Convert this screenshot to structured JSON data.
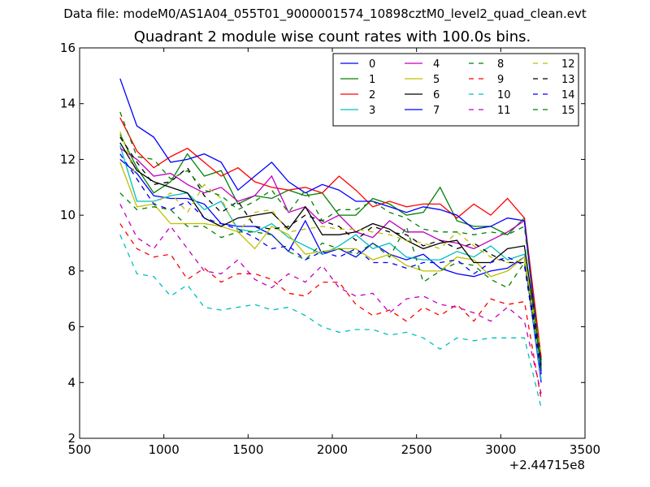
{
  "figure_suptitle": "Data file: modeM0/AS1A04_055T01_9000001574_10898cztM0_level2_quad_clean.evt",
  "chart_data": {
    "type": "line",
    "title": "Quadrant 2 module wise count rates with 100.0s bins.",
    "xlabel": "",
    "ylabel": "",
    "x_offset_label": "+2.44715e8",
    "xlim": [
      500,
      3500
    ],
    "ylim": [
      2,
      16
    ],
    "xticks": [
      500,
      1000,
      1500,
      2000,
      2500,
      3000,
      3500
    ],
    "yticks": [
      2,
      4,
      6,
      8,
      10,
      12,
      14,
      16
    ],
    "grid": false,
    "legend_position": "upper-right",
    "legend_columns": 4,
    "x": [
      740,
      840,
      940,
      1040,
      1140,
      1240,
      1340,
      1440,
      1540,
      1640,
      1740,
      1840,
      1940,
      2040,
      2140,
      2240,
      2340,
      2440,
      2540,
      2640,
      2740,
      2840,
      2940,
      3040,
      3140,
      3240
    ],
    "series": [
      {
        "name": "0",
        "color": "#0000ff",
        "dash": "solid",
        "values": [
          12.0,
          11.5,
          10.7,
          10.6,
          10.6,
          10.4,
          9.7,
          9.6,
          9.6,
          9.3,
          8.7,
          9.8,
          8.6,
          8.8,
          8.5,
          9.0,
          8.6,
          8.4,
          8.6,
          8.1,
          7.9,
          7.8,
          8.0,
          8.1,
          8.5,
          4.0
        ]
      },
      {
        "name": "1",
        "color": "#008000",
        "dash": "solid",
        "values": [
          12.9,
          11.7,
          10.8,
          11.2,
          12.2,
          11.4,
          11.6,
          10.4,
          10.7,
          10.6,
          10.9,
          10.7,
          10.8,
          10.0,
          10.0,
          10.6,
          10.4,
          10.0,
          10.1,
          11.0,
          9.8,
          9.6,
          9.6,
          9.3,
          9.9,
          4.8
        ]
      },
      {
        "name": "2",
        "color": "#ff0000",
        "dash": "solid",
        "values": [
          13.5,
          12.3,
          11.7,
          12.1,
          12.4,
          11.9,
          11.4,
          11.7,
          11.2,
          11.0,
          10.9,
          11.0,
          10.8,
          11.4,
          10.9,
          10.3,
          10.5,
          10.3,
          10.4,
          10.4,
          9.9,
          10.4,
          10.0,
          10.6,
          9.9,
          4.9
        ]
      },
      {
        "name": "3",
        "color": "#00bfbf",
        "dash": "solid",
        "values": [
          12.5,
          10.5,
          10.5,
          10.7,
          10.8,
          10.2,
          10.5,
          9.5,
          9.4,
          9.7,
          9.2,
          8.9,
          8.6,
          8.9,
          9.3,
          8.8,
          9.0,
          8.5,
          8.4,
          8.4,
          8.7,
          8.5,
          8.9,
          8.4,
          8.6,
          4.1
        ]
      },
      {
        "name": "4",
        "color": "#bf00bf",
        "dash": "solid",
        "values": [
          12.4,
          12.0,
          11.4,
          11.5,
          11.1,
          10.8,
          11.0,
          10.5,
          10.7,
          11.4,
          10.1,
          10.3,
          9.7,
          10.0,
          9.4,
          9.2,
          9.8,
          9.4,
          9.4,
          9.1,
          9.0,
          8.8,
          9.1,
          9.4,
          9.8,
          4.3
        ]
      },
      {
        "name": "5",
        "color": "#bfbf00",
        "dash": "solid",
        "values": [
          11.9,
          10.3,
          10.4,
          9.7,
          9.7,
          9.7,
          9.6,
          9.4,
          8.8,
          9.6,
          9.3,
          8.6,
          8.7,
          8.8,
          8.8,
          8.4,
          8.6,
          8.2,
          8.0,
          8.0,
          8.5,
          8.4,
          7.8,
          8.0,
          8.5,
          4.5
        ]
      },
      {
        "name": "6",
        "color": "#000000",
        "dash": "solid",
        "values": [
          12.6,
          11.6,
          11.2,
          11.0,
          10.8,
          9.9,
          9.6,
          9.9,
          10.0,
          10.1,
          9.5,
          10.3,
          9.3,
          9.3,
          9.4,
          9.7,
          9.5,
          9.1,
          8.8,
          9.0,
          9.1,
          8.3,
          8.3,
          8.8,
          8.9,
          4.7
        ]
      },
      {
        "name": "7",
        "color": "#0000ff",
        "dash": "solid",
        "values": [
          14.9,
          13.2,
          12.8,
          11.9,
          12.0,
          12.2,
          11.9,
          10.9,
          11.4,
          11.9,
          11.2,
          10.8,
          11.1,
          10.9,
          10.5,
          10.5,
          10.3,
          10.1,
          10.3,
          10.2,
          10.0,
          9.5,
          9.6,
          9.9,
          9.8,
          4.4
        ]
      },
      {
        "name": "8",
        "color": "#008000",
        "dash": "dashed",
        "values": [
          10.8,
          10.2,
          10.3,
          10.2,
          9.6,
          9.6,
          9.2,
          9.4,
          9.4,
          9.3,
          8.7,
          8.4,
          9.0,
          8.8,
          8.6,
          9.0,
          8.5,
          9.6,
          7.6,
          8.0,
          8.3,
          8.2,
          7.7,
          7.4,
          8.3,
          4.7
        ]
      },
      {
        "name": "9",
        "color": "#ff0000",
        "dash": "dashed",
        "values": [
          9.7,
          8.8,
          8.5,
          8.6,
          7.7,
          8.1,
          7.6,
          7.9,
          7.9,
          7.7,
          7.2,
          7.1,
          7.6,
          7.6,
          6.8,
          6.4,
          6.6,
          6.2,
          6.7,
          6.4,
          6.8,
          6.2,
          7.0,
          6.8,
          6.9,
          3.4
        ]
      },
      {
        "name": "10",
        "color": "#00bfbf",
        "dash": "dashed",
        "values": [
          9.3,
          7.9,
          7.8,
          7.1,
          7.5,
          6.7,
          6.6,
          6.7,
          6.8,
          6.6,
          6.7,
          6.4,
          6.0,
          5.8,
          5.9,
          5.9,
          5.7,
          5.8,
          5.6,
          5.2,
          5.6,
          5.5,
          5.6,
          5.6,
          5.6,
          3.1
        ]
      },
      {
        "name": "11",
        "color": "#bf00bf",
        "dash": "dashed",
        "values": [
          10.4,
          9.2,
          8.8,
          9.6,
          8.8,
          8.0,
          7.9,
          8.4,
          7.7,
          7.4,
          7.9,
          7.6,
          8.2,
          7.4,
          7.1,
          7.2,
          6.5,
          7.0,
          7.1,
          6.8,
          6.7,
          6.5,
          6.2,
          6.7,
          6.2,
          3.6
        ]
      },
      {
        "name": "12",
        "color": "#bfbf00",
        "dash": "dashed",
        "values": [
          13.0,
          11.3,
          10.4,
          10.8,
          10.1,
          11.1,
          10.6,
          9.4,
          10.1,
          10.2,
          9.4,
          9.5,
          9.6,
          9.5,
          9.5,
          9.4,
          9.3,
          9.1,
          9.0,
          8.8,
          9.4,
          8.9,
          8.5,
          8.3,
          8.4,
          5.0
        ]
      },
      {
        "name": "13",
        "color": "#000000",
        "dash": "dashed",
        "values": [
          12.8,
          11.9,
          11.1,
          11.2,
          11.7,
          10.7,
          10.1,
          10.5,
          9.6,
          9.5,
          9.6,
          10.0,
          9.8,
          9.6,
          9.1,
          9.6,
          9.4,
          9.3,
          8.9,
          9.1,
          8.8,
          9.0,
          8.6,
          8.3,
          8.3,
          4.6
        ]
      },
      {
        "name": "14",
        "color": "#0000ff",
        "dash": "dashed",
        "values": [
          12.2,
          11.3,
          10.4,
          10.2,
          10.5,
          9.9,
          9.7,
          9.5,
          9.2,
          8.8,
          8.9,
          8.4,
          8.7,
          8.5,
          8.8,
          8.3,
          8.3,
          8.1,
          8.3,
          8.3,
          8.4,
          7.9,
          8.3,
          8.5,
          8.2,
          4.3
        ]
      },
      {
        "name": "15",
        "color": "#008000",
        "dash": "dashed",
        "values": [
          13.7,
          12.1,
          12.0,
          11.3,
          11.6,
          10.9,
          10.7,
          10.2,
          10.5,
          10.9,
          10.1,
          10.9,
          9.8,
          10.2,
          10.2,
          10.5,
          10.1,
          9.9,
          9.5,
          9.4,
          9.4,
          9.3,
          9.4,
          9.3,
          9.6,
          4.5
        ]
      }
    ]
  }
}
